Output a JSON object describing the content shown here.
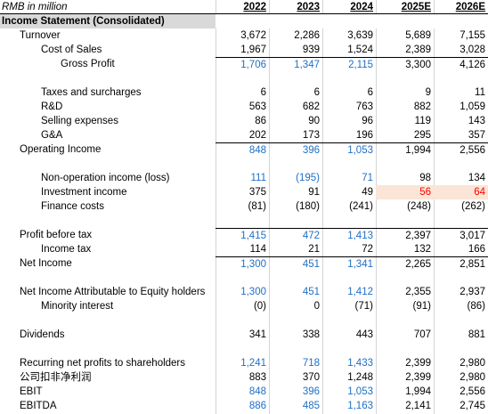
{
  "unit_note": "RMB in million",
  "years": [
    "2022",
    "2023",
    "2024",
    "2025E",
    "2026E"
  ],
  "section_title": "Income Statement (Consolidated)",
  "rows": {
    "turnover": {
      "label": "Turnover",
      "v": [
        "3,672",
        "2,286",
        "3,639",
        "5,689",
        "7,155"
      ]
    },
    "cost_of_sales": {
      "label": "Cost of Sales",
      "v": [
        "1,967",
        "939",
        "1,524",
        "2,389",
        "3,028"
      ]
    },
    "gross_profit": {
      "label": "Gross Profit",
      "v": [
        "1,706",
        "1,347",
        "2,115",
        "3,300",
        "4,126"
      ]
    },
    "taxes": {
      "label": "Taxes and surcharges",
      "v": [
        "6",
        "6",
        "6",
        "9",
        "11"
      ]
    },
    "rnd": {
      "label": "R&D",
      "v": [
        "563",
        "682",
        "763",
        "882",
        "1,059"
      ]
    },
    "selling": {
      "label": "Selling expenses",
      "v": [
        "86",
        "90",
        "96",
        "119",
        "143"
      ]
    },
    "gna": {
      "label": "G&A",
      "v": [
        "202",
        "173",
        "196",
        "295",
        "357"
      ]
    },
    "operating_income": {
      "label": "Operating Income",
      "v": [
        "848",
        "396",
        "1,053",
        "1,994",
        "2,556"
      ]
    },
    "non_operation": {
      "label": "Non-operation income (loss)",
      "v": [
        "111",
        "(195)",
        "71",
        "98",
        "134"
      ]
    },
    "investment_income": {
      "label": "Investment income",
      "v": [
        "375",
        "91",
        "49",
        "56",
        "64"
      ]
    },
    "finance_costs": {
      "label": "Finance costs",
      "v": [
        "(81)",
        "(180)",
        "(241)",
        "(248)",
        "(262)"
      ]
    },
    "pbt": {
      "label": "Profit before tax",
      "v": [
        "1,415",
        "472",
        "1,413",
        "2,397",
        "3,017"
      ]
    },
    "income_tax": {
      "label": "Income tax",
      "v": [
        "114",
        "21",
        "72",
        "132",
        "166"
      ]
    },
    "net_income": {
      "label": "Net Income",
      "v": [
        "1,300",
        "451",
        "1,341",
        "2,265",
        "2,851"
      ]
    },
    "ni_attrib": {
      "label": "Net Income Attributable to Equity holders",
      "v": [
        "1,300",
        "451",
        "1,412",
        "2,355",
        "2,937"
      ]
    },
    "minority": {
      "label": "Minority interest",
      "v": [
        "(0)",
        "0",
        "(71)",
        "(91)",
        "(86)"
      ]
    },
    "dividends": {
      "label": "Dividends",
      "v": [
        "341",
        "338",
        "443",
        "707",
        "881"
      ]
    },
    "recurring": {
      "label": "Recurring net profits to shareholders",
      "v": [
        "1,241",
        "718",
        "1,433",
        "2,399",
        "2,980"
      ]
    },
    "kfjlr": {
      "label": "公司扣非净利润",
      "v": [
        "883",
        "370",
        "1,248",
        "2,399",
        "2,980"
      ]
    },
    "ebit": {
      "label": "EBIT",
      "v": [
        "848",
        "396",
        "1,053",
        "1,994",
        "2,556"
      ]
    },
    "ebitda": {
      "label": "EBITDA",
      "v": [
        "886",
        "485",
        "1,163",
        "2,141",
        "2,745"
      ]
    }
  },
  "colors": {
    "historic_computed": "#1f6fc5",
    "estimate_highlight_bg": "#fbe5d6",
    "estimate_highlight_text": "#ff0000",
    "section_bg": "#d9d9d9"
  }
}
